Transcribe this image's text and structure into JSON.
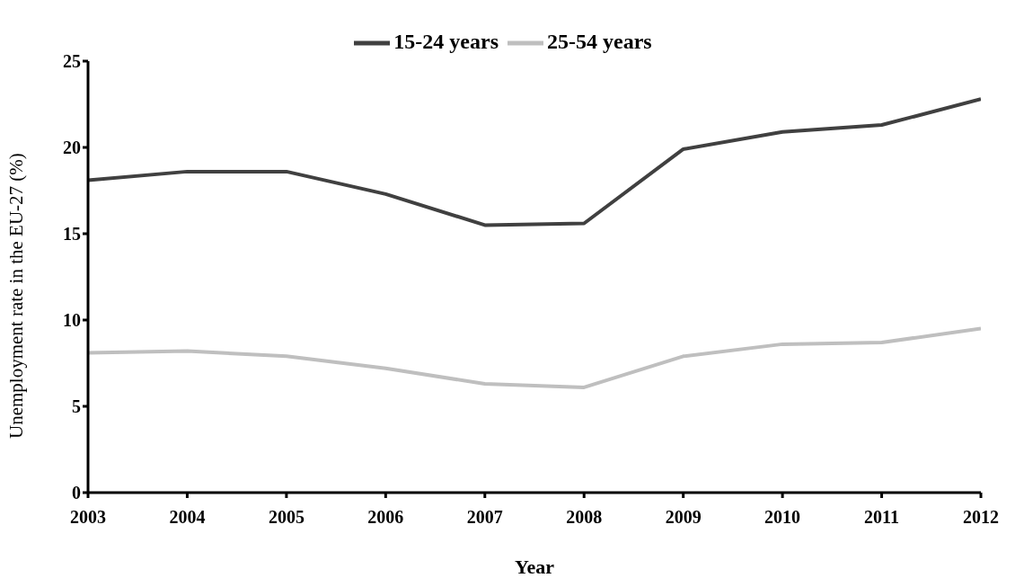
{
  "chart_data": {
    "type": "line",
    "xlabel": "Year",
    "ylabel": "Unemployment rate in the EU-27 (%)",
    "x": [
      2003,
      2004,
      2005,
      2006,
      2007,
      2008,
      2009,
      2010,
      2011,
      2012
    ],
    "series": [
      {
        "name": "15-24 years",
        "color": "#404040",
        "values": [
          18.1,
          18.6,
          18.6,
          17.3,
          15.5,
          15.6,
          19.9,
          20.9,
          21.3,
          22.8
        ]
      },
      {
        "name": "25-54 years",
        "color": "#bfbfbf",
        "values": [
          8.1,
          8.2,
          7.9,
          7.2,
          6.3,
          6.1,
          7.9,
          8.6,
          8.7,
          9.5
        ]
      }
    ],
    "xlim": [
      2003,
      2012
    ],
    "xticks": [
      2003,
      2004,
      2005,
      2006,
      2007,
      2008,
      2009,
      2010,
      2011,
      2012
    ],
    "ylim": [
      0,
      25
    ],
    "yticks": [
      0,
      5,
      10,
      15,
      20,
      25
    ],
    "grid": false,
    "legend": "top",
    "marker": "none",
    "line_style": "solid"
  }
}
